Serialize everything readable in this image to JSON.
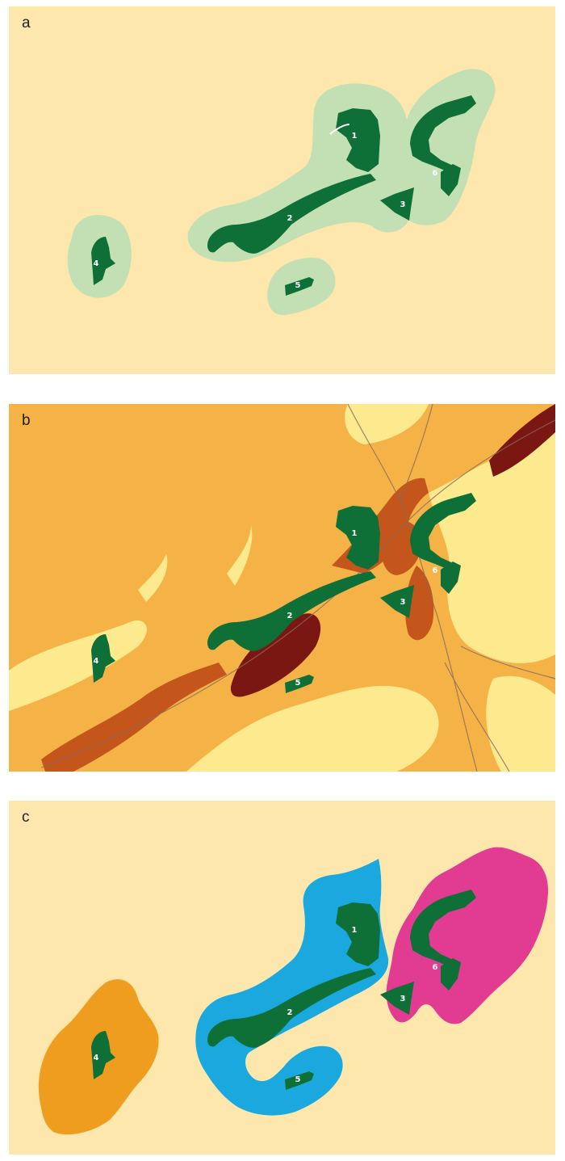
{
  "panels": [
    {
      "label": "a"
    },
    {
      "label": "b"
    },
    {
      "label": "c"
    }
  ],
  "sites": [
    "1",
    "2",
    "3",
    "4",
    "5",
    "6"
  ],
  "colors": {
    "background": "#fde7ad",
    "site": "#0e6f37",
    "buffer": "#c3dfb4",
    "habitat_light": "#fdea8f",
    "habitat_medium": "#f5b347",
    "habitat_dark": "#c4561c",
    "habitat_darkest": "#7b1712",
    "catchment_site2": "#1aa8df",
    "catchment_site4": "#ef9d1f",
    "catchment_site6": "#e13c92"
  }
}
